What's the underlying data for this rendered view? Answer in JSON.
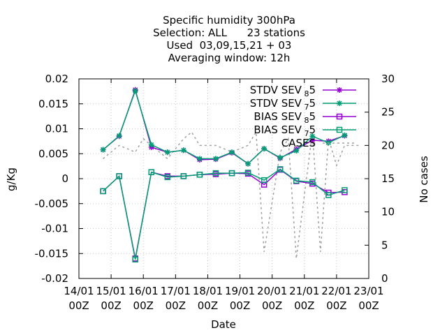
{
  "chart_data": {
    "type": "line",
    "title_lines": [
      "Specific humidity 300hPa",
      "Selection: ALL      23 stations",
      "Used  03,09,15,21 + 03",
      "Averaging window: 12h"
    ],
    "xlabel": "Date",
    "ylabel": "g/Kg",
    "y2label": "No cases",
    "x_ticks": [
      {
        "l1": "14/01",
        "l2": "00Z"
      },
      {
        "l1": "15/01",
        "l2": "00Z"
      },
      {
        "l1": "16/01",
        "l2": "00Z"
      },
      {
        "l1": "17/01",
        "l2": "00Z"
      },
      {
        "l1": "18/01",
        "l2": "00Z"
      },
      {
        "l1": "19/01",
        "l2": "00Z"
      },
      {
        "l1": "20/01",
        "l2": "00Z"
      },
      {
        "l1": "21/01",
        "l2": "00Z"
      },
      {
        "l1": "22/01",
        "l2": "00Z"
      },
      {
        "l1": "23/01",
        "l2": "00Z"
      }
    ],
    "xlim_days": [
      14,
      23
    ],
    "ylim": [
      -0.02,
      0.02
    ],
    "y_ticks": [
      "-0.02",
      "-0.015",
      "-0.01",
      "-0.005",
      "0",
      "0.005",
      "0.01",
      "0.015",
      "0.02"
    ],
    "y2lim": [
      0,
      30
    ],
    "y2_ticks": [
      "0",
      "5",
      "10",
      "15",
      "20",
      "25",
      "30"
    ],
    "grid": true,
    "legend_position": "top-right",
    "series": [
      {
        "name": "STDV SEV_8 5",
        "label_main": "STDV SEV",
        "label_sub": "8",
        "label_tail": "5",
        "color": "#9400d3",
        "marker": "star",
        "axis": "y1",
        "x": [
          "14/01 18Z",
          "15/01 06Z",
          "15/01 18Z",
          "16/01 06Z",
          "16/01 18Z",
          "17/01 06Z",
          "17/01 18Z",
          "18/01 06Z",
          "18/01 18Z",
          "19/01 06Z",
          "19/01 18Z",
          "20/01 06Z",
          "20/01 18Z",
          "21/01 06Z",
          "21/01 18Z",
          "22/01 06Z",
          "22/01 18Z"
        ],
        "values": [
          0.0058,
          0.0085,
          0.0178,
          0.0063,
          0.0053,
          0.0057,
          0.0038,
          0.0039,
          0.0052,
          0.003,
          0.006,
          0.0041,
          0.0059,
          0.0077,
          0.0075,
          0.0086,
          null
        ]
      },
      {
        "name": "STDV SEV_7 5",
        "label_main": "STDV SEV",
        "label_sub": "7",
        "label_tail": "5",
        "color": "#009e73",
        "marker": "star",
        "axis": "y1",
        "x": [
          "14/01 18Z",
          "15/01 06Z",
          "15/01 18Z",
          "16/01 06Z",
          "16/01 18Z",
          "17/01 06Z",
          "17/01 18Z",
          "18/01 06Z",
          "18/01 18Z",
          "19/01 06Z",
          "19/01 18Z",
          "20/01 06Z",
          "20/01 18Z",
          "21/01 06Z",
          "21/01 18Z",
          "22/01 06Z",
          "22/01 18Z"
        ],
        "values": [
          0.0058,
          0.0086,
          0.0176,
          0.0068,
          0.0053,
          0.0057,
          0.004,
          0.004,
          0.0053,
          0.003,
          0.006,
          0.0042,
          0.0056,
          0.0085,
          0.0072,
          0.0087,
          null
        ]
      },
      {
        "name": "BIAS SEV_8 5",
        "label_main": "BIAS SEV",
        "label_sub": "8",
        "label_tail": "5",
        "color": "#9400d3",
        "marker": "square",
        "axis": "y1",
        "x": [
          "14/01 18Z",
          "15/01 06Z",
          "15/01 18Z",
          "16/01 06Z",
          "16/01 18Z",
          "17/01 06Z",
          "17/01 18Z",
          "18/01 06Z",
          "18/01 18Z",
          "19/01 06Z",
          "19/01 18Z",
          "20/01 06Z",
          "20/01 18Z",
          "21/01 06Z",
          "21/01 18Z",
          "22/01 06Z",
          "22/01 18Z"
        ],
        "values": [
          -0.0025,
          0.0005,
          -0.016,
          0.0013,
          0.0005,
          0.0005,
          0.0008,
          0.0009,
          0.0011,
          0.001,
          -0.0012,
          0.0018,
          -0.0005,
          -0.001,
          -0.0028,
          -0.0027,
          null
        ]
      },
      {
        "name": "BIAS SEV_7 5",
        "label_main": "BIAS SEV",
        "label_sub": "7",
        "label_tail": "5",
        "color": "#009e73",
        "marker": "square",
        "axis": "y1",
        "x": [
          "14/01 18Z",
          "15/01 06Z",
          "15/01 18Z",
          "16/01 06Z",
          "16/01 18Z",
          "17/01 06Z",
          "17/01 18Z",
          "18/01 06Z",
          "18/01 18Z",
          "19/01 06Z",
          "19/01 18Z",
          "20/01 06Z",
          "20/01 18Z",
          "21/01 06Z",
          "21/01 18Z",
          "22/01 06Z",
          "22/01 18Z"
        ],
        "values": [
          -0.0025,
          0.0005,
          -0.0162,
          0.0013,
          0.0003,
          0.0005,
          0.0008,
          0.0011,
          0.0011,
          0.0012,
          -0.0003,
          0.0019,
          -0.0004,
          -0.0007,
          -0.0033,
          -0.0023,
          null
        ]
      },
      {
        "name": "CASES",
        "label_main": "CASES",
        "label_sub": "",
        "label_tail": "",
        "color": "#a0a0a0",
        "marker": "none",
        "axis": "y2",
        "dashed": true,
        "x": [
          "14/01 18Z",
          "15/01 06Z",
          "15/01 18Z",
          "16/01 00Z",
          "16/01 06Z",
          "16/01 18Z",
          "17/01 06Z",
          "17/01 12Z",
          "17/01 18Z",
          "18/01 06Z",
          "18/01 18Z",
          "19/01 06Z",
          "19/01 12Z",
          "19/01 18Z",
          "20/01 06Z",
          "20/01 12Z",
          "20/01 18Z",
          "21/01 06Z",
          "21/01 12Z",
          "21/01 18Z",
          "22/01 00Z",
          "22/01 06Z",
          "22/01 18Z"
        ],
        "values": [
          18,
          20,
          19,
          21,
          20,
          18,
          21,
          22,
          20,
          20,
          19,
          20,
          22,
          4,
          19,
          21,
          3,
          22,
          4,
          21,
          17,
          20,
          20
        ]
      }
    ]
  }
}
